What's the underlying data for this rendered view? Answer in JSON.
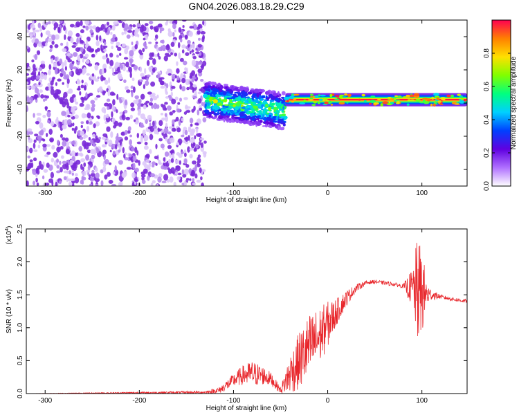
{
  "title": "GN04.2026.083.18.29.C29",
  "chart_data": [
    {
      "type": "heatmap",
      "xlabel": "Height of straight line (km)",
      "ylabel": "Frequency (Hz)",
      "xlim": [
        -320,
        148
      ],
      "ylim": [
        -50,
        50
      ],
      "xticks": [
        -300,
        -200,
        -100,
        0,
        100
      ],
      "yticks": [
        -40,
        -20,
        0,
        20,
        40
      ],
      "grid": false,
      "colorbar": {
        "label": "Normalized spectral amplitude",
        "range": [
          0.0,
          1.0
        ],
        "ticks": [
          "0.0",
          "0.2",
          "0.4",
          "0.6",
          "0.8"
        ],
        "colors": [
          "#ffffff",
          "#b070ff",
          "#6000e0",
          "#0040ff",
          "#00d0ff",
          "#00ff80",
          "#80ff00",
          "#ffe000",
          "#ff8000",
          "#ff0050"
        ]
      },
      "regions": [
        {
          "x_range": [
            -320,
            -130
          ],
          "freq_range": [
            -50,
            50
          ],
          "amplitude": "noise",
          "color": "#7a2ad8"
        },
        {
          "x_range": [
            -130,
            -45
          ],
          "freq_center": [
            2,
            -5
          ],
          "freq_width": 12,
          "amplitude_peak": 0.6
        },
        {
          "x_range": [
            -45,
            148
          ],
          "freq_center": 2,
          "freq_width": 4,
          "amplitude_peak": 1.0
        }
      ]
    },
    {
      "type": "line",
      "xlabel": "Height of straight line (km)",
      "ylabel": "SNR (10 * v/v)",
      "y_multiplier_label": "(x10^4)",
      "xlim": [
        -320,
        148
      ],
      "ylim": [
        0,
        2.5
      ],
      "xticks": [
        -300,
        -200,
        -100,
        0,
        100
      ],
      "yticks": [
        "0.0",
        "0.5",
        "1.0",
        "1.5",
        "2.0",
        "2.5"
      ],
      "grid": false,
      "series": [
        {
          "color": "#e8262b",
          "x": [
            -320,
            -130,
            -115,
            -100,
            -90,
            -80,
            -70,
            -60,
            -50,
            -40,
            -30,
            -20,
            -10,
            0,
            10,
            20,
            30,
            40,
            50,
            60,
            70,
            80,
            90,
            95,
            100,
            105,
            110,
            120,
            130,
            148
          ],
          "y_base": [
            0.0,
            0.02,
            0.05,
            0.2,
            0.28,
            0.3,
            0.28,
            0.22,
            0.05,
            0.3,
            0.5,
            0.7,
            0.85,
            1.05,
            1.25,
            1.45,
            1.6,
            1.68,
            1.7,
            1.68,
            1.66,
            1.63,
            1.6,
            1.55,
            1.55,
            1.5,
            1.5,
            1.47,
            1.44,
            1.4
          ],
          "y_noise": [
            0.0,
            0.02,
            0.05,
            0.1,
            0.15,
            0.2,
            0.15,
            0.1,
            0.05,
            0.3,
            0.45,
            0.5,
            0.45,
            0.35,
            0.2,
            0.12,
            0.06,
            0.03,
            0.03,
            0.03,
            0.03,
            0.03,
            0.3,
            0.8,
            0.7,
            0.2,
            0.08,
            0.03,
            0.03,
            0.03
          ]
        }
      ]
    }
  ]
}
